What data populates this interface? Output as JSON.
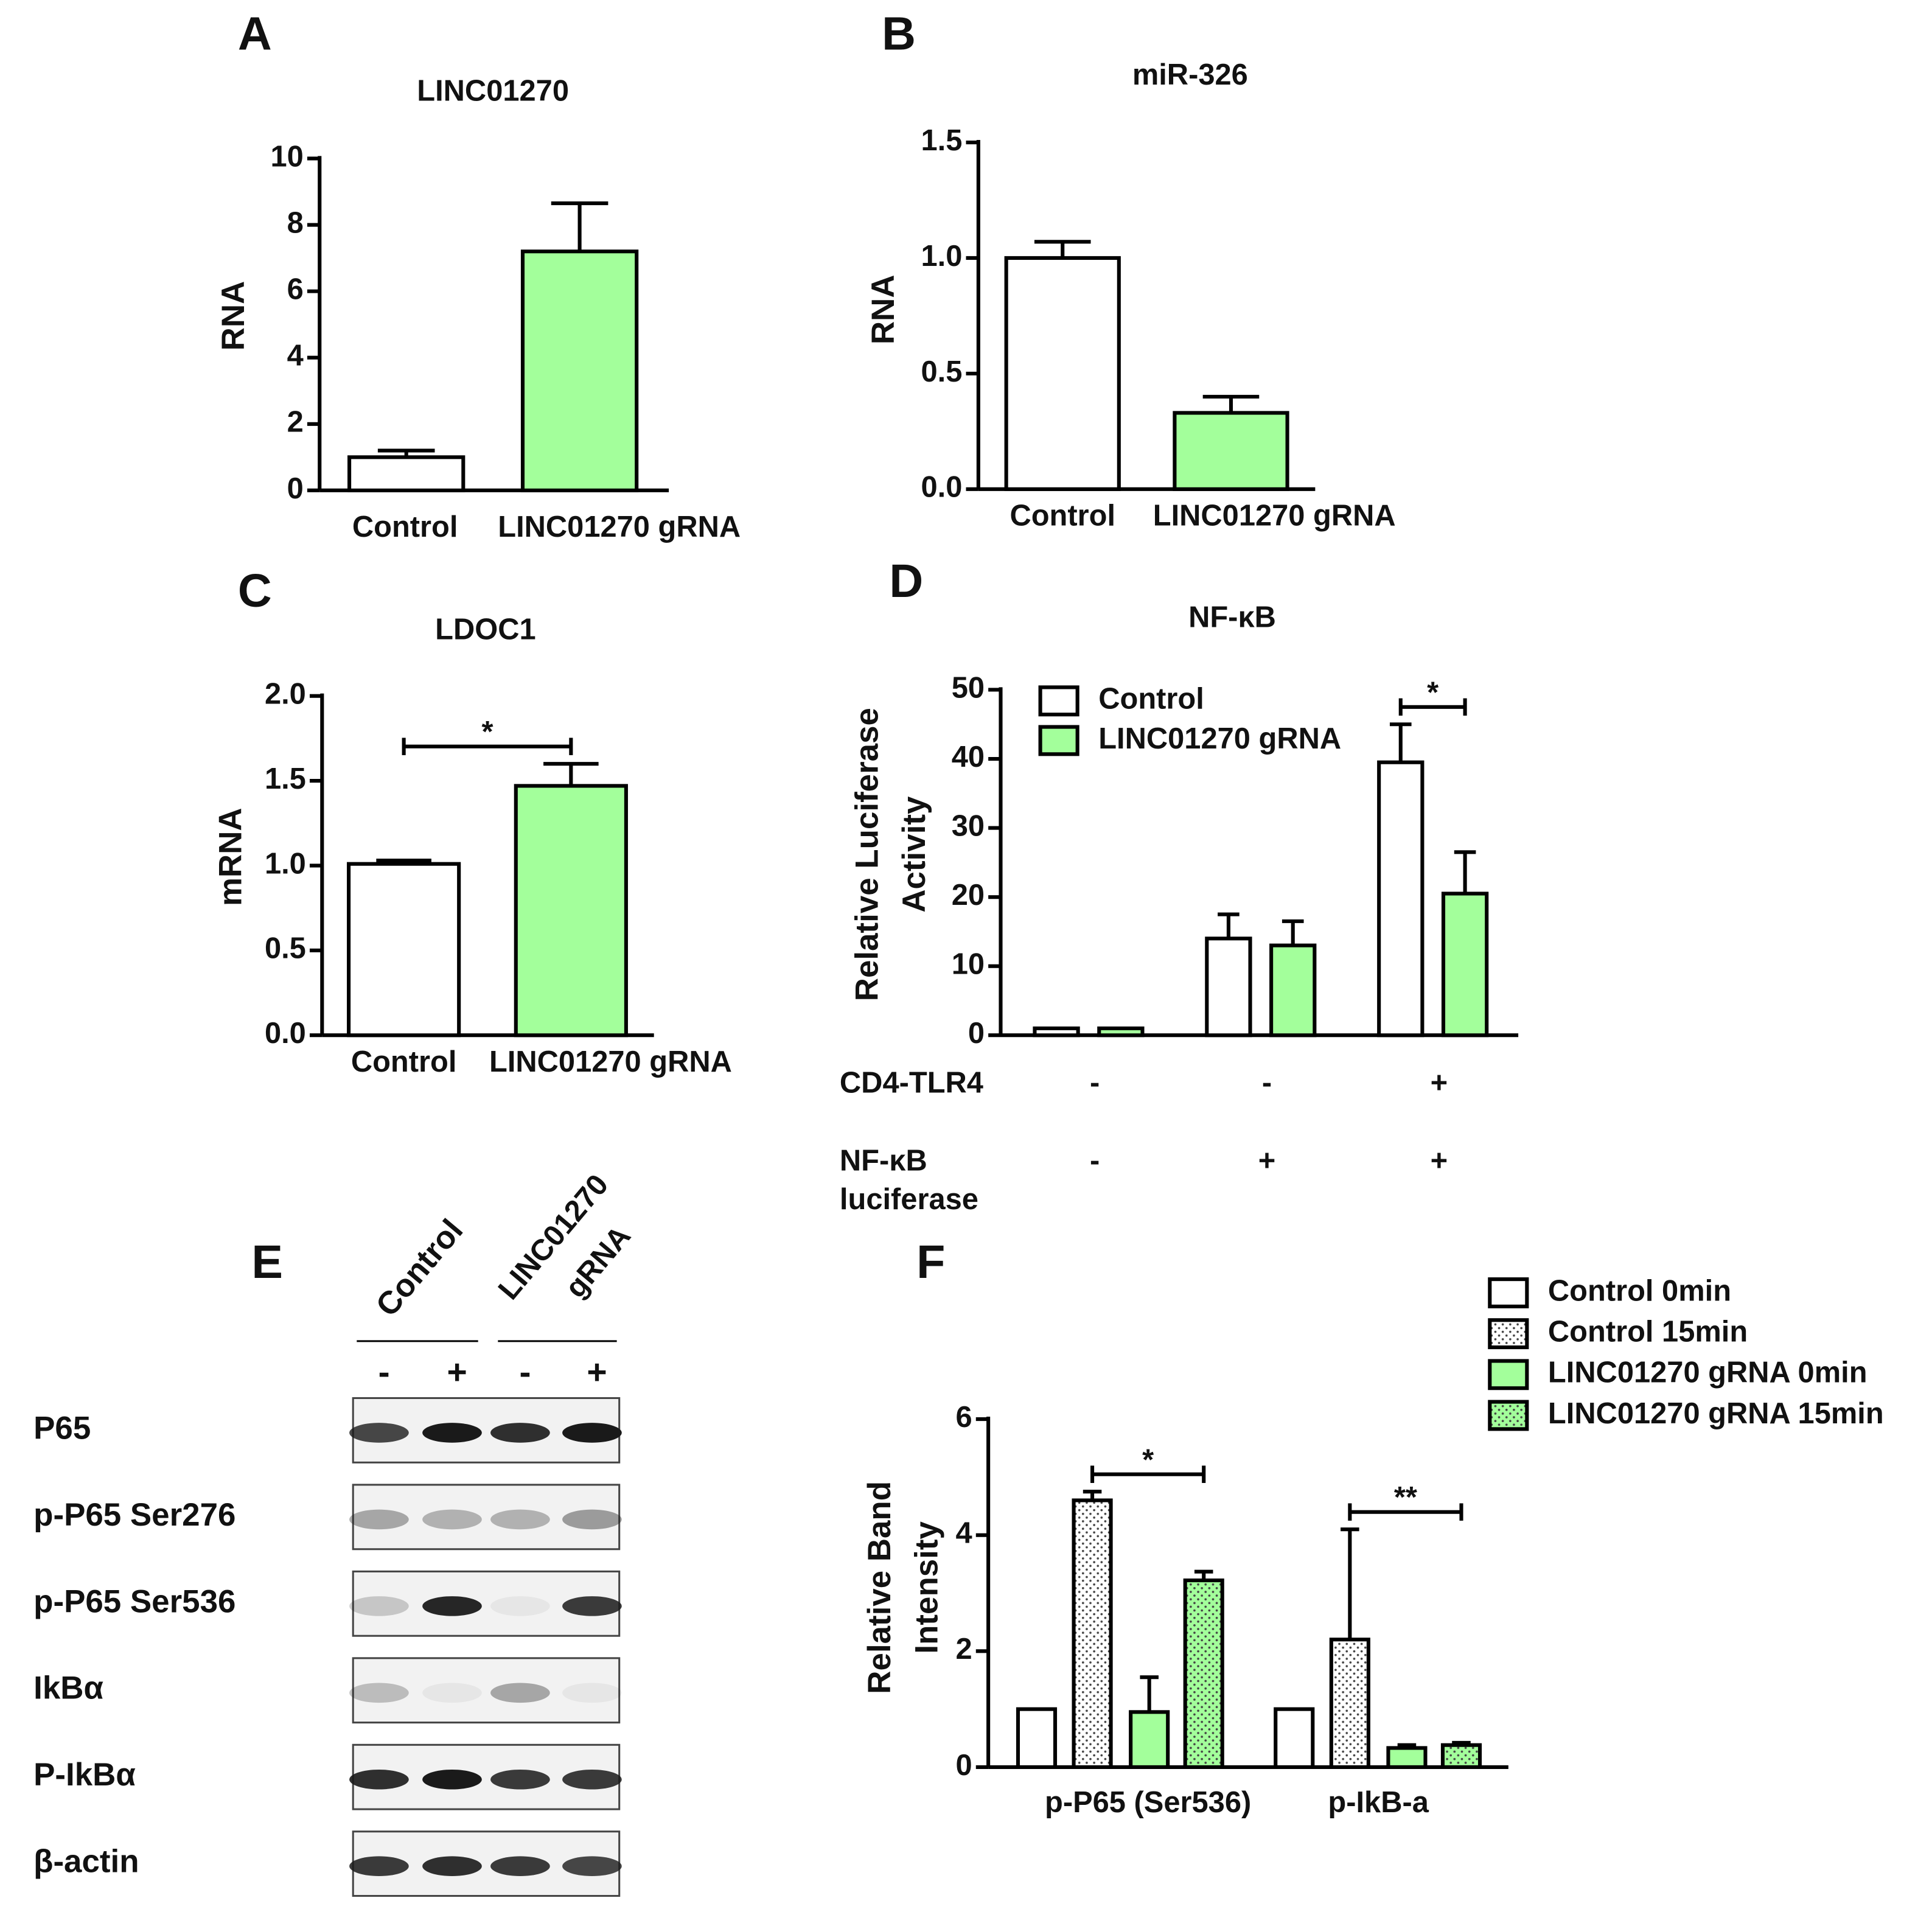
{
  "chart_data": [
    {
      "type": "bar",
      "panel": "A",
      "title": "LINC01270",
      "ylabel": [
        "RNA"
      ],
      "categories": [
        "Control",
        "LINC01270 gRNA"
      ],
      "values": [
        1.0,
        7.2
      ],
      "errors": [
        0.2,
        1.45
      ],
      "colors": [
        "#ffffff",
        "#a3ff9b"
      ],
      "ylim": [
        0,
        10
      ],
      "yticks": [
        0,
        2,
        4,
        6,
        8,
        10
      ]
    },
    {
      "type": "bar",
      "panel": "B",
      "title": "miR-326",
      "ylabel": [
        "RNA"
      ],
      "categories": [
        "Control",
        "LINC01270 gRNA"
      ],
      "values": [
        1.0,
        0.33
      ],
      "errors": [
        0.07,
        0.07
      ],
      "colors": [
        "#ffffff",
        "#a3ff9b"
      ],
      "ylim": [
        0,
        1.5
      ],
      "yticks": [
        {
          "value": 0,
          "label": "0.0"
        },
        0.5,
        {
          "value": 1,
          "label": "1.0"
        },
        1.5
      ]
    },
    {
      "type": "bar",
      "panel": "C",
      "title": "LDOC1",
      "ylabel": [
        "mRNA"
      ],
      "categories": [
        "Control",
        "LINC01270 gRNA"
      ],
      "values": [
        1.01,
        1.47
      ],
      "errors": [
        0.02,
        0.13
      ],
      "colors": [
        "#ffffff",
        "#a3ff9b"
      ],
      "ylim": [
        0,
        2
      ],
      "yticks": [
        {
          "value": 0,
          "label": "0.0"
        },
        0.5,
        {
          "value": 1,
          "label": "1.0"
        },
        1.5,
        {
          "value": 2,
          "label": "2.0"
        }
      ],
      "annotations": [
        {
          "text": "*",
          "from": 0,
          "to": 1
        }
      ]
    },
    {
      "type": "grouped_bar",
      "panel": "D",
      "title": "NF-κB",
      "ylabel": [
        "Relative Luciferase",
        "Activity"
      ],
      "categories": [
        null,
        null,
        null
      ],
      "series": [
        {
          "name": "Control",
          "color": "#ffffff",
          "values": [
            1,
            14,
            39.5
          ],
          "errors": [
            0,
            3.5,
            5.5
          ]
        },
        {
          "name": "LINC01270 gRNA",
          "color": "#a3ff9b",
          "values": [
            1,
            13,
            20.5
          ],
          "errors": [
            0,
            3.5,
            6
          ]
        }
      ],
      "ylim": [
        0,
        50
      ],
      "yticks": [
        0,
        10,
        20,
        30,
        40,
        50
      ],
      "legend": "upper left",
      "conditions": [
        {
          "label": [
            "CD4-TLR4"
          ],
          "values": [
            "-",
            "-",
            "+"
          ]
        },
        {
          "label": [
            "NF-κB",
            "luciferase"
          ],
          "values": [
            "-",
            "+",
            "+"
          ]
        }
      ],
      "annotations": [
        {
          "text": "*",
          "group": 2,
          "from": 0,
          "to": 1
        }
      ]
    },
    {
      "type": "grouped_bar",
      "panel": "F",
      "ylabel": [
        "Relative Band",
        "Intensity"
      ],
      "categories": [
        "p-P65 (Ser536)",
        "p-IkB-a"
      ],
      "series": [
        {
          "name": "Control 0min",
          "color": "#ffffff",
          "pattern": "solid",
          "values": [
            1,
            1
          ],
          "errors": [
            0,
            0
          ]
        },
        {
          "name": "Control 15min",
          "color": "#ffffff",
          "pattern": "dots",
          "values": [
            4.6,
            2.2
          ],
          "errors": [
            0.15,
            1.9
          ]
        },
        {
          "name": "LINC01270 gRNA 0min",
          "color": "#a3ff9b",
          "pattern": "solid",
          "values": [
            0.95,
            0.33
          ],
          "errors": [
            0.6,
            0.05
          ]
        },
        {
          "name": "LINC01270 gRNA 15min",
          "color": "#a3ff9b",
          "pattern": "dots",
          "values": [
            3.22,
            0.38
          ],
          "errors": [
            0.15,
            0.04
          ]
        }
      ],
      "ylim": [
        0,
        6
      ],
      "yticks": [
        0,
        2,
        4,
        6
      ],
      "legend": "above right",
      "annotations": [
        {
          "text": "*",
          "group": 0,
          "from": 1,
          "to": 3
        },
        {
          "text": "**",
          "group": 1,
          "from": 1,
          "to": 3
        }
      ]
    }
  ],
  "blot": {
    "panel": "E",
    "lanes": [
      [
        "Control"
      ],
      [
        "LINC01270",
        "gRNA"
      ]
    ],
    "treatment": [
      "-",
      "+",
      "-",
      "+"
    ],
    "rows": [
      "P65",
      "p-P65 Ser276",
      "p-P65 Ser536",
      "IkBα",
      "P-IkBα",
      "β-actin"
    ]
  }
}
